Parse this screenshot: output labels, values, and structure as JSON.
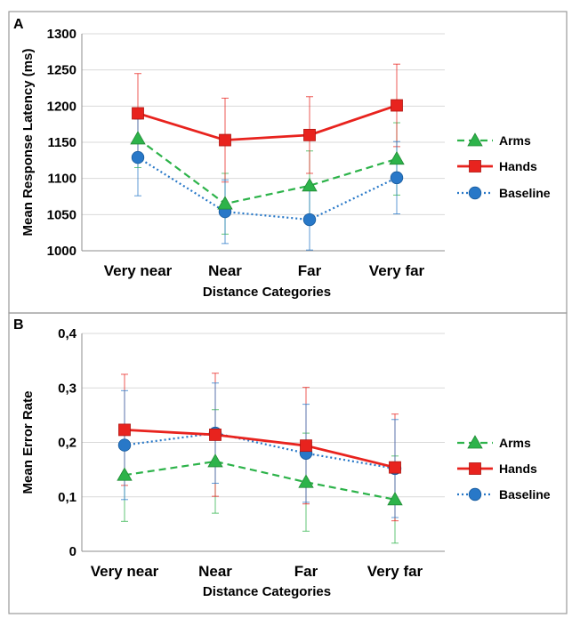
{
  "chart_data": [
    {
      "panel_label": "A",
      "type": "line",
      "xlabel": "Distance Categories",
      "ylabel": "Mean Response Latency (ms)",
      "ylim": [
        1000,
        1300
      ],
      "yticks": [
        1000,
        1050,
        1100,
        1150,
        1200,
        1250,
        1300
      ],
      "ytick_labels": [
        "1000",
        "1050",
        "1100",
        "1150",
        "1200",
        "1250",
        "1300"
      ],
      "categories": [
        "Very near",
        "Near",
        "Far",
        "Very far"
      ],
      "grid": true,
      "legend": "right",
      "series": [
        {
          "name": "Arms",
          "color": "#2db34a",
          "marker": "triangle",
          "line": "dashed",
          "values": [
            1155,
            1065,
            1090,
            1127
          ],
          "err": [
            40,
            42,
            48,
            50
          ]
        },
        {
          "name": "Hands",
          "color": "#e8231e",
          "marker": "square",
          "line": "solid",
          "values": [
            1190,
            1153,
            1160,
            1201
          ],
          "err": [
            55,
            58,
            53,
            57
          ]
        },
        {
          "name": "Baseline",
          "color": "#2878c8",
          "marker": "circle",
          "line": "dotted",
          "values": [
            1129,
            1054,
            1043,
            1101
          ],
          "err": [
            53,
            44,
            42,
            50
          ]
        }
      ]
    },
    {
      "panel_label": "B",
      "type": "line",
      "xlabel": "Distance Categories",
      "ylabel": "Mean Error Rate",
      "ylim": [
        0,
        0.4
      ],
      "yticks": [
        0,
        0.1,
        0.2,
        0.3,
        0.4
      ],
      "ytick_labels": [
        "0",
        "0,1",
        "0,2",
        "0,3",
        "0,4"
      ],
      "categories": [
        "Very near",
        "Near",
        "Far",
        "Very far"
      ],
      "grid": true,
      "legend": "right",
      "series": [
        {
          "name": "Arms",
          "color": "#2db34a",
          "marker": "triangle",
          "line": "dashed",
          "values": [
            0.14,
            0.165,
            0.127,
            0.095
          ],
          "err": [
            0.085,
            0.095,
            0.09,
            0.08
          ]
        },
        {
          "name": "Hands",
          "color": "#e8231e",
          "marker": "square",
          "line": "solid",
          "values": [
            0.223,
            0.214,
            0.194,
            0.154
          ],
          "err": [
            0.102,
            0.113,
            0.107,
            0.098
          ]
        },
        {
          "name": "Baseline",
          "color": "#2878c8",
          "marker": "circle",
          "line": "dotted",
          "values": [
            0.195,
            0.217,
            0.18,
            0.152
          ],
          "err": [
            0.1,
            0.092,
            0.09,
            0.09
          ]
        }
      ]
    }
  ]
}
